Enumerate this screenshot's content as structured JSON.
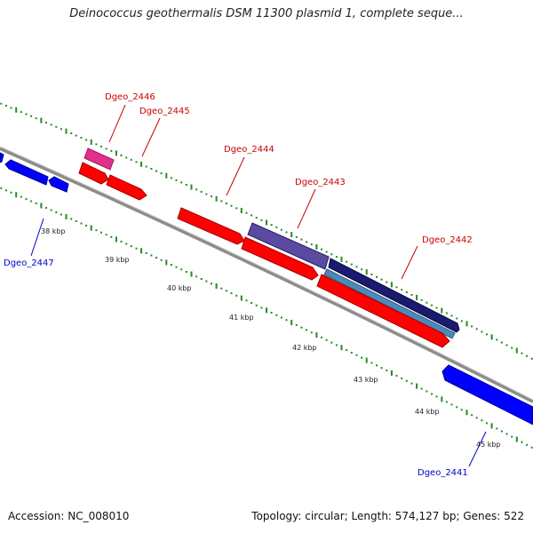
{
  "header": {
    "title": "Deinococcus geothermalis DSM 11300 plasmid 1, complete seque..."
  },
  "footer": {
    "accession_text": "Accession: NC_008010",
    "summary_text": "Topology: circular; Length: 574,127 bp; Genes: 522"
  },
  "colors": {
    "backbone": "#8c8c8c",
    "forward_gene": "#ff0000",
    "reverse_gene": "#0000ff",
    "label_red": "#cc0000",
    "label_blue": "#0000cc",
    "tick_green": "#228b22",
    "gene_magenta": "#e0308a",
    "gene_purple": "#5a4aa0",
    "gene_navy": "#1a1a6e",
    "gene_steel": "#4a8ab8"
  },
  "kbp_ticks": [
    "38 kbp",
    "39 kbp",
    "40 kbp",
    "41 kbp",
    "42 kbp",
    "43 kbp",
    "44 kbp",
    "45 kbp"
  ],
  "gene_labels": [
    {
      "name": "Dgeo_2446",
      "color": "label_red"
    },
    {
      "name": "Dgeo_2445",
      "color": "label_red"
    },
    {
      "name": "Dgeo_2444",
      "color": "label_red"
    },
    {
      "name": "Dgeo_2443",
      "color": "label_red"
    },
    {
      "name": "Dgeo_2442",
      "color": "label_red"
    },
    {
      "name": "Dgeo_2447",
      "color": "label_blue"
    },
    {
      "name": "Dgeo_2441",
      "color": "label_blue"
    }
  ]
}
